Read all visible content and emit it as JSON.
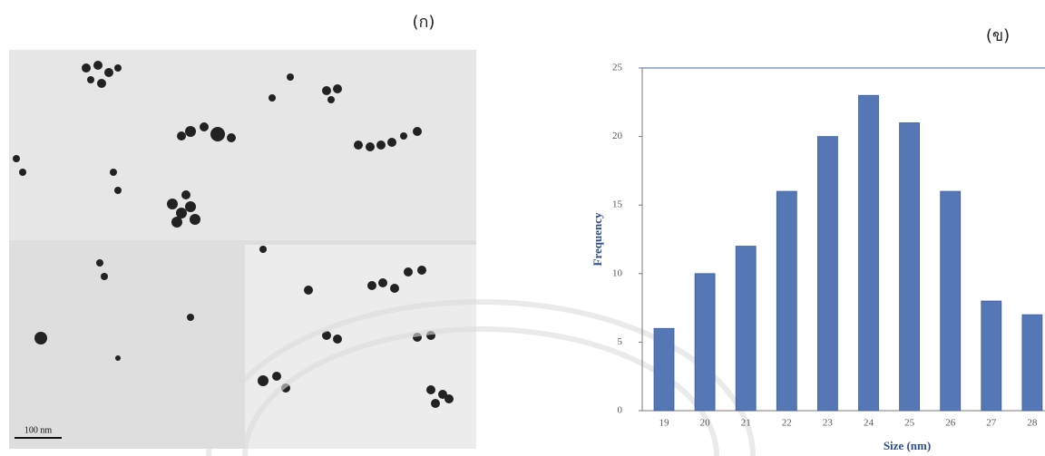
{
  "panel_labels": [
    "(ก)",
    "(ข)"
  ],
  "image": {
    "scale_bar": "100 nm"
  },
  "chart_data": {
    "type": "bar",
    "categories": [
      "19",
      "20",
      "21",
      "22",
      "23",
      "24",
      "25",
      "26",
      "27",
      "28"
    ],
    "values": [
      6,
      10,
      12,
      16,
      20,
      23,
      21,
      16,
      8,
      7
    ],
    "color": "#5677b6",
    "ylim": [
      0,
      25
    ],
    "yticks": [
      0,
      5,
      10,
      15,
      20,
      25
    ],
    "x_label": "Size (nm)",
    "y_label": "Frequency"
  }
}
